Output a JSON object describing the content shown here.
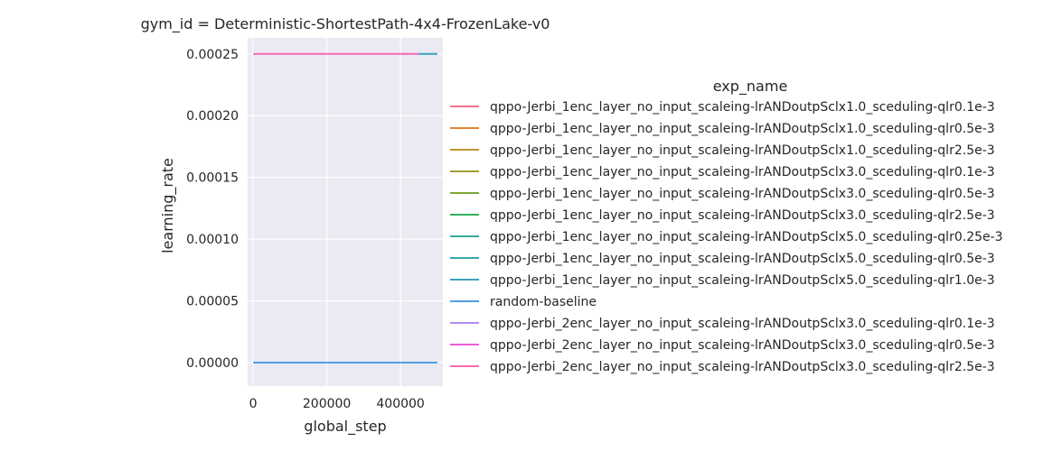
{
  "chart_data": {
    "type": "line",
    "title": "gym_id = Deterministic-ShortestPath-4x4-FrozenLake-v0",
    "xlabel": "global_step",
    "ylabel": "learning_rate",
    "xlim": [
      -15000,
      515000
    ],
    "ylim": [
      -1.9e-05,
      0.000263
    ],
    "xticks": [
      0,
      200000,
      400000
    ],
    "xtick_labels": [
      "0",
      "200000",
      "400000"
    ],
    "yticks": [
      0,
      5e-05,
      0.0001,
      0.00015,
      0.0002,
      0.00025
    ],
    "ytick_labels": [
      "0.00000",
      "0.00005",
      "0.00010",
      "0.00015",
      "0.00020",
      "0.00025"
    ],
    "grid": true,
    "legend": {
      "title": "exp_name",
      "placement": "right"
    },
    "series": [
      {
        "name": "qppo-Jerbi_1enc_layer_no_input_scaleing-lrANDoutpSclx1.0_sceduling-qlr0.1e-3",
        "color": "#f77189",
        "x": [],
        "y": []
      },
      {
        "name": "qppo-Jerbi_1enc_layer_no_input_scaleing-lrANDoutpSclx1.0_sceduling-qlr0.5e-3",
        "color": "#e5822f",
        "x": [],
        "y": []
      },
      {
        "name": "qppo-Jerbi_1enc_layer_no_input_scaleing-lrANDoutpSclx1.0_sceduling-qlr2.5e-3",
        "color": "#c39532",
        "x": [],
        "y": []
      },
      {
        "name": "qppo-Jerbi_1enc_layer_no_input_scaleing-lrANDoutpSclx3.0_sceduling-qlr0.1e-3",
        "color": "#a69f32",
        "x": [],
        "y": []
      },
      {
        "name": "qppo-Jerbi_1enc_layer_no_input_scaleing-lrANDoutpSclx3.0_sceduling-qlr0.5e-3",
        "color": "#7ca932",
        "x": [],
        "y": []
      },
      {
        "name": "qppo-Jerbi_1enc_layer_no_input_scaleing-lrANDoutpSclx3.0_sceduling-qlr2.5e-3",
        "color": "#33b05c",
        "x": [],
        "y": []
      },
      {
        "name": "qppo-Jerbi_1enc_layer_no_input_scaleing-lrANDoutpSclx5.0_sceduling-qlr0.25e-3",
        "color": "#35ad91",
        "x": [],
        "y": []
      },
      {
        "name": "qppo-Jerbi_1enc_layer_no_input_scaleing-lrANDoutpSclx5.0_sceduling-qlr0.5e-3",
        "color": "#37aaa9",
        "x": [],
        "y": []
      },
      {
        "name": "qppo-Jerbi_1enc_layer_no_input_scaleing-lrANDoutpSclx5.0_sceduling-qlr1.0e-3",
        "color": "#3ba3bf",
        "x": [
          450000,
          500000
        ],
        "y": [
          0.00025,
          0.00025
        ]
      },
      {
        "name": "random-baseline",
        "color": "#4e9ee4",
        "x": [
          0,
          500000
        ],
        "y": [
          0,
          0
        ]
      },
      {
        "name": "qppo-Jerbi_2enc_layer_no_input_scaleing-lrANDoutpSclx3.0_sceduling-qlr0.1e-3",
        "color": "#b28ef4",
        "x": [],
        "y": []
      },
      {
        "name": "qppo-Jerbi_2enc_layer_no_input_scaleing-lrANDoutpSclx3.0_sceduling-qlr0.5e-3",
        "color": "#f15cd6",
        "x": [],
        "y": []
      },
      {
        "name": "qppo-Jerbi_2enc_layer_no_input_scaleing-lrANDoutpSclx3.0_sceduling-qlr2.5e-3",
        "color": "#f569b5",
        "x": [
          0,
          450000
        ],
        "y": [
          0.00025,
          0.00025
        ]
      }
    ]
  }
}
